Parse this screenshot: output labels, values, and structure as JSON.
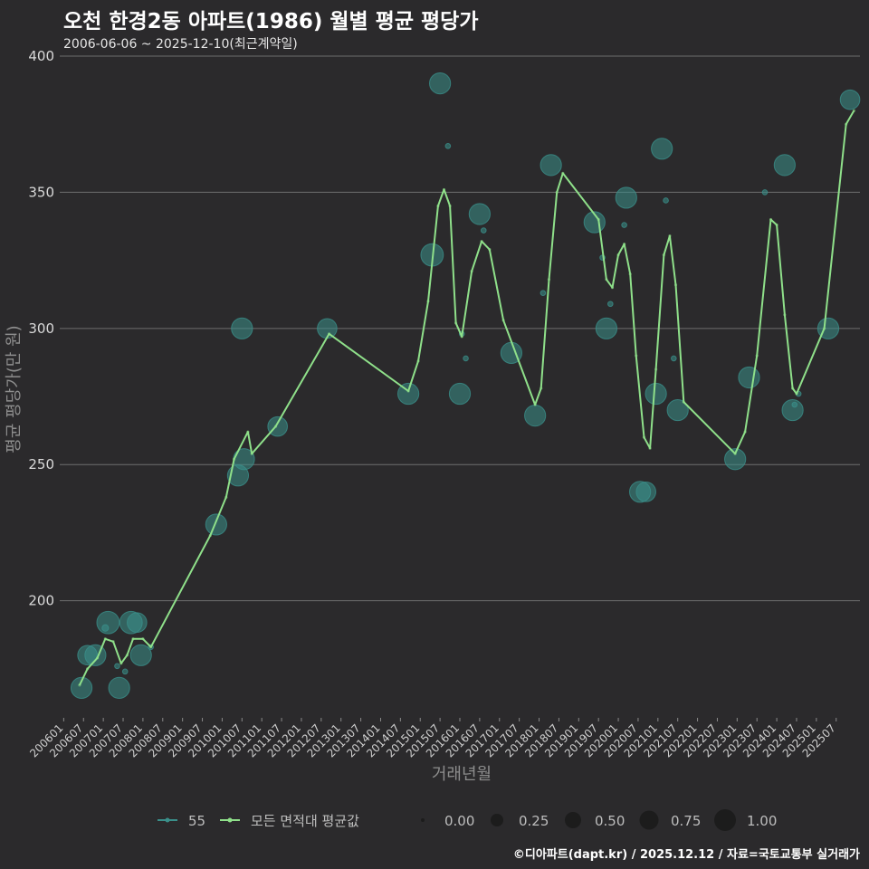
{
  "title": "오천 한경2동 아파트(1986) 월별 평균 평당가",
  "subtitle": "2006-06-06 ~ 2025-12-10(최근계약일)",
  "credit": "©디아파트(dapt.kr) / 2025.12.12 / 자료=국토교통부 실거래가",
  "colors": {
    "background": "#2b2a2c",
    "series55": "#3a8f8a",
    "avg_line": "#8fe08a",
    "grid": "#6e6e6e"
  },
  "chart_data": {
    "type": "scatter",
    "xlabel": "거래년월",
    "ylabel": "평균 평당가(만 원)",
    "ylim": [
      157,
      402
    ],
    "yticks": [
      200,
      250,
      300,
      350,
      400
    ],
    "xlim": [
      2005.9,
      2026.1
    ],
    "xticks": [
      "200601",
      "200607",
      "200701",
      "200707",
      "200801",
      "200807",
      "200901",
      "200907",
      "201001",
      "201007",
      "201101",
      "201107",
      "201201",
      "201207",
      "201301",
      "201307",
      "201401",
      "201407",
      "201501",
      "201507",
      "201601",
      "201607",
      "201701",
      "201707",
      "201801",
      "201807",
      "201901",
      "201907",
      "202001",
      "202007",
      "202101",
      "202107",
      "202201",
      "202207",
      "202301",
      "202307",
      "202401",
      "202407",
      "202501",
      "202507"
    ],
    "series": [
      {
        "name": "55",
        "points": [
          {
            "x": 2006.45,
            "y": 168,
            "size": 0.6
          },
          {
            "x": 2006.6,
            "y": 180,
            "size": 0.55
          },
          {
            "x": 2006.8,
            "y": 180,
            "size": 0.6
          },
          {
            "x": 2007.05,
            "y": 190,
            "size": 0.1
          },
          {
            "x": 2007.12,
            "y": 192,
            "size": 0.65
          },
          {
            "x": 2007.4,
            "y": 168,
            "size": 0.6
          },
          {
            "x": 2007.35,
            "y": 176,
            "size": 0.05
          },
          {
            "x": 2007.55,
            "y": 174,
            "size": 0.05
          },
          {
            "x": 2007.7,
            "y": 192,
            "size": 0.65
          },
          {
            "x": 2007.85,
            "y": 192,
            "size": 0.55
          },
          {
            "x": 2007.95,
            "y": 180,
            "size": 0.6
          },
          {
            "x": 2008.2,
            "y": 183,
            "size": 0.05
          },
          {
            "x": 2009.85,
            "y": 228,
            "size": 0.6
          },
          {
            "x": 2010.4,
            "y": 246,
            "size": 0.6
          },
          {
            "x": 2010.55,
            "y": 252,
            "size": 0.6
          },
          {
            "x": 2010.5,
            "y": 300,
            "size": 0.6
          },
          {
            "x": 2011.4,
            "y": 264,
            "size": 0.55
          },
          {
            "x": 2012.65,
            "y": 300,
            "size": 0.55
          },
          {
            "x": 2014.7,
            "y": 276,
            "size": 0.6
          },
          {
            "x": 2015.3,
            "y": 327,
            "size": 0.65
          },
          {
            "x": 2015.5,
            "y": 390,
            "size": 0.6
          },
          {
            "x": 2015.7,
            "y": 367,
            "size": 0.05
          },
          {
            "x": 2016.0,
            "y": 276,
            "size": 0.6
          },
          {
            "x": 2016.05,
            "y": 298,
            "size": 0.05
          },
          {
            "x": 2016.15,
            "y": 289,
            "size": 0.05
          },
          {
            "x": 2016.5,
            "y": 342,
            "size": 0.6
          },
          {
            "x": 2016.6,
            "y": 336,
            "size": 0.05
          },
          {
            "x": 2017.3,
            "y": 291,
            "size": 0.6
          },
          {
            "x": 2017.9,
            "y": 268,
            "size": 0.6
          },
          {
            "x": 2018.1,
            "y": 313,
            "size": 0.05
          },
          {
            "x": 2018.3,
            "y": 360,
            "size": 0.6
          },
          {
            "x": 2019.4,
            "y": 339,
            "size": 0.6
          },
          {
            "x": 2019.6,
            "y": 326,
            "size": 0.05
          },
          {
            "x": 2019.7,
            "y": 300,
            "size": 0.6
          },
          {
            "x": 2019.8,
            "y": 309,
            "size": 0.05
          },
          {
            "x": 2020.2,
            "y": 348,
            "size": 0.6
          },
          {
            "x": 2020.15,
            "y": 338,
            "size": 0.05
          },
          {
            "x": 2020.55,
            "y": 240,
            "size": 0.6
          },
          {
            "x": 2020.7,
            "y": 240,
            "size": 0.55
          },
          {
            "x": 2020.95,
            "y": 276,
            "size": 0.6
          },
          {
            "x": 2021.1,
            "y": 366,
            "size": 0.6
          },
          {
            "x": 2021.2,
            "y": 347,
            "size": 0.05
          },
          {
            "x": 2021.5,
            "y": 270,
            "size": 0.6
          },
          {
            "x": 2021.4,
            "y": 289,
            "size": 0.05
          },
          {
            "x": 2022.95,
            "y": 252,
            "size": 0.6
          },
          {
            "x": 2023.3,
            "y": 282,
            "size": 0.6
          },
          {
            "x": 2023.7,
            "y": 350,
            "size": 0.05
          },
          {
            "x": 2024.2,
            "y": 360,
            "size": 0.6
          },
          {
            "x": 2024.4,
            "y": 270,
            "size": 0.6
          },
          {
            "x": 2024.45,
            "y": 272,
            "size": 0.05
          },
          {
            "x": 2024.55,
            "y": 276,
            "size": 0.05
          },
          {
            "x": 2025.3,
            "y": 300,
            "size": 0.6
          },
          {
            "x": 2025.85,
            "y": 384,
            "size": 0.55
          }
        ]
      },
      {
        "name": "모든 면적대 평균값",
        "points": [
          {
            "x": 2006.4,
            "y": 169
          },
          {
            "x": 2006.6,
            "y": 175
          },
          {
            "x": 2006.85,
            "y": 179
          },
          {
            "x": 2007.05,
            "y": 186
          },
          {
            "x": 2007.25,
            "y": 185
          },
          {
            "x": 2007.45,
            "y": 177
          },
          {
            "x": 2007.6,
            "y": 180
          },
          {
            "x": 2007.75,
            "y": 186
          },
          {
            "x": 2008.0,
            "y": 186
          },
          {
            "x": 2008.2,
            "y": 183
          },
          {
            "x": 2009.7,
            "y": 224
          },
          {
            "x": 2010.1,
            "y": 238
          },
          {
            "x": 2010.3,
            "y": 252
          },
          {
            "x": 2010.65,
            "y": 262
          },
          {
            "x": 2010.75,
            "y": 254
          },
          {
            "x": 2011.35,
            "y": 264
          },
          {
            "x": 2012.7,
            "y": 298
          },
          {
            "x": 2014.7,
            "y": 277
          },
          {
            "x": 2014.95,
            "y": 288
          },
          {
            "x": 2015.2,
            "y": 310
          },
          {
            "x": 2015.45,
            "y": 345
          },
          {
            "x": 2015.6,
            "y": 351
          },
          {
            "x": 2015.75,
            "y": 345
          },
          {
            "x": 2015.9,
            "y": 302
          },
          {
            "x": 2016.05,
            "y": 297
          },
          {
            "x": 2016.3,
            "y": 321
          },
          {
            "x": 2016.55,
            "y": 332
          },
          {
            "x": 2016.75,
            "y": 329
          },
          {
            "x": 2017.1,
            "y": 303
          },
          {
            "x": 2017.9,
            "y": 272
          },
          {
            "x": 2018.05,
            "y": 278
          },
          {
            "x": 2018.25,
            "y": 318
          },
          {
            "x": 2018.45,
            "y": 350
          },
          {
            "x": 2018.6,
            "y": 357
          },
          {
            "x": 2019.5,
            "y": 340
          },
          {
            "x": 2019.7,
            "y": 318
          },
          {
            "x": 2019.85,
            "y": 315
          },
          {
            "x": 2020.0,
            "y": 327
          },
          {
            "x": 2020.15,
            "y": 331
          },
          {
            "x": 2020.3,
            "y": 320
          },
          {
            "x": 2020.45,
            "y": 290
          },
          {
            "x": 2020.65,
            "y": 260
          },
          {
            "x": 2020.8,
            "y": 256
          },
          {
            "x": 2020.95,
            "y": 285
          },
          {
            "x": 2021.15,
            "y": 327
          },
          {
            "x": 2021.3,
            "y": 334
          },
          {
            "x": 2021.45,
            "y": 316
          },
          {
            "x": 2021.65,
            "y": 273
          },
          {
            "x": 2022.95,
            "y": 254
          },
          {
            "x": 2023.2,
            "y": 262
          },
          {
            "x": 2023.5,
            "y": 290
          },
          {
            "x": 2023.85,
            "y": 340
          },
          {
            "x": 2024.0,
            "y": 338
          },
          {
            "x": 2024.2,
            "y": 305
          },
          {
            "x": 2024.4,
            "y": 278
          },
          {
            "x": 2024.5,
            "y": 276
          },
          {
            "x": 2025.2,
            "y": 300
          },
          {
            "x": 2025.75,
            "y": 375
          },
          {
            "x": 2025.95,
            "y": 380
          }
        ]
      }
    ],
    "size_legend": [
      "0.00",
      "0.25",
      "0.50",
      "0.75",
      "1.00"
    ]
  }
}
